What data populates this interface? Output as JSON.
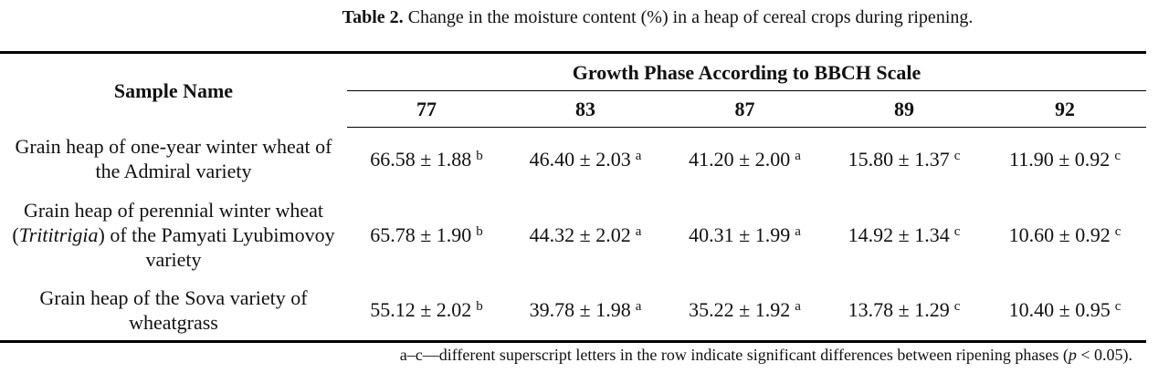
{
  "caption": {
    "label": "Table 2.",
    "text": " Change in the moisture content (%) in a heap of cereal crops during ripening."
  },
  "table": {
    "header": {
      "sample": "Sample Name",
      "group": "Growth Phase According to BBCH Scale",
      "phases": [
        77,
        83,
        87,
        89,
        92
      ]
    },
    "rows": [
      {
        "name": [
          "Grain heap of one-year winter wheat of the Admiral variety"
        ],
        "cells": [
          {
            "value": "66.58 ± 1.88",
            "sup": "b"
          },
          {
            "value": "46.40 ± 2.03",
            "sup": "a"
          },
          {
            "value": "41.20 ± 2.00",
            "sup": "a"
          },
          {
            "value": "15.80 ± 1.37",
            "sup": "c"
          },
          {
            "value": "11.90 ± 0.92",
            "sup": "c"
          }
        ]
      },
      {
        "name": [
          "Grain heap of perennial winter wheat (",
          "Trititrigia",
          ") of the Pamyati Lyubimovoy variety"
        ],
        "cells": [
          {
            "value": "65.78 ± 1.90",
            "sup": "b"
          },
          {
            "value": "44.32 ± 2.02",
            "sup": "a"
          },
          {
            "value": "40.31 ± 1.99",
            "sup": "a"
          },
          {
            "value": "14.92 ± 1.34",
            "sup": "c"
          },
          {
            "value": "10.60 ± 0.92",
            "sup": "c"
          }
        ]
      },
      {
        "name": [
          "Grain heap of the Sova variety of wheatgrass"
        ],
        "cells": [
          {
            "value": "55.12 ± 2.02",
            "sup": "b"
          },
          {
            "value": "39.78 ± 1.98",
            "sup": "a"
          },
          {
            "value": "35.22 ± 1.92",
            "sup": "a"
          },
          {
            "value": "13.78 ± 1.29",
            "sup": "c"
          },
          {
            "value": "10.40 ± 0.95",
            "sup": "c"
          }
        ]
      }
    ]
  },
  "footnote": [
    "a–c—different superscript letters in the row indicate significant differences between ripening phases (",
    "p",
    " < 0.05)."
  ]
}
